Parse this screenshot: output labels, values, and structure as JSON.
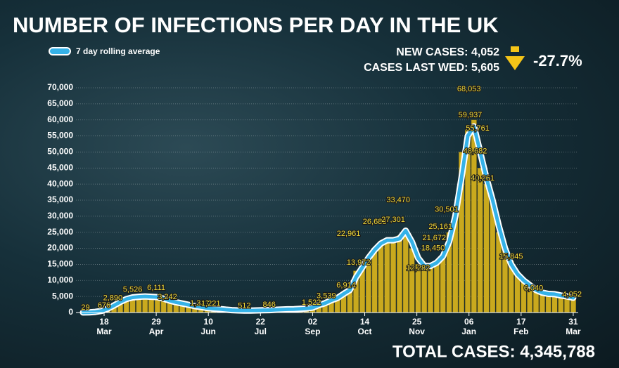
{
  "title": "NUMBER OF INFECTIONS PER DAY IN THE UK",
  "new_cases": "NEW CASES: 4,052",
  "cases_last_wed": "CASES LAST WED: 5,605",
  "change": "-27.7%",
  "total_cases": "TOTAL CASES: 4,345,788",
  "chart_data": {
    "type": "bar_line",
    "legend": "7 day rolling average",
    "xlim": [
      0,
      399
    ],
    "xticks": [
      {
        "value": 17,
        "label": "18 Mar"
      },
      {
        "value": 59,
        "label": "29 Apr"
      },
      {
        "value": 101,
        "label": "10 Jun"
      },
      {
        "value": 143,
        "label": "22 Jul"
      },
      {
        "value": 185,
        "label": "02 Sep"
      },
      {
        "value": 227,
        "label": "14 Oct"
      },
      {
        "value": 269,
        "label": "25 Nov"
      },
      {
        "value": 311,
        "label": "06 Jan"
      },
      {
        "value": 353,
        "label": "17 Feb"
      },
      {
        "value": 395,
        "label": "31 Mar"
      }
    ],
    "ylim": [
      0,
      70000
    ],
    "yticks": [
      0,
      {
        "value": 5000,
        "label": "5,000"
      },
      {
        "value": 10000,
        "label": "10,000"
      },
      {
        "value": 15000,
        "label": "15,000"
      },
      {
        "value": 20000,
        "label": "20,000"
      },
      {
        "value": 25000,
        "label": "25,000"
      },
      {
        "value": 30000,
        "label": "30,000"
      },
      {
        "value": 35000,
        "label": "35,000"
      },
      {
        "value": 40000,
        "label": "40,000"
      },
      {
        "value": 45000,
        "label": "45,000"
      },
      {
        "value": 50000,
        "label": "50,000"
      },
      {
        "value": 55000,
        "label": "55,000"
      },
      {
        "value": 60000,
        "label": "60,000"
      },
      {
        "value": 65000,
        "label": "65,000"
      },
      {
        "value": 70000,
        "label": "70,000"
      }
    ],
    "grid": true,
    "x": [
      0,
      5,
      10,
      15,
      20,
      25,
      30,
      35,
      40,
      45,
      50,
      55,
      60,
      65,
      70,
      75,
      80,
      85,
      90,
      95,
      100,
      105,
      110,
      115,
      120,
      125,
      130,
      135,
      140,
      145,
      150,
      155,
      160,
      165,
      170,
      175,
      180,
      185,
      190,
      195,
      200,
      205,
      210,
      215,
      220,
      225,
      230,
      235,
      240,
      245,
      250,
      255,
      260,
      265,
      270,
      275,
      280,
      285,
      290,
      295,
      300,
      305,
      310,
      315,
      320,
      325,
      330,
      335,
      340,
      345,
      350,
      355,
      360,
      365,
      370,
      375,
      380,
      385,
      390,
      395
    ],
    "bars": {
      "color": "#c9a91e",
      "values": [
        30,
        50,
        300,
        600,
        1500,
        2500,
        3500,
        4500,
        5000,
        5000,
        5200,
        4800,
        5500,
        4500,
        3800,
        3400,
        2900,
        2600,
        2400,
        1800,
        1500,
        1300,
        1200,
        1000,
        800,
        700,
        600,
        550,
        700,
        750,
        800,
        900,
        1000,
        1000,
        1100,
        1200,
        1300,
        1500,
        2500,
        3000,
        4000,
        4500,
        6000,
        7000,
        13000,
        15000,
        17000,
        19000,
        22000,
        23000,
        22000,
        24000,
        25000,
        20000,
        15000,
        13000,
        14000,
        15000,
        18000,
        25000,
        33000,
        50000,
        57000,
        60000,
        45000,
        40000,
        35000,
        25000,
        20000,
        16000,
        12000,
        10000,
        9000,
        7000,
        6000,
        5500,
        5500,
        5000,
        4500,
        4052
      ]
    },
    "series": [
      {
        "name": "7 day rolling average",
        "color": "#35b2e8",
        "values": [
          20,
          40,
          200,
          500,
          1200,
          2200,
          3300,
          4200,
          4700,
          4900,
          5000,
          4900,
          4800,
          4300,
          3700,
          3200,
          2800,
          2400,
          2000,
          1700,
          1400,
          1200,
          1100,
          900,
          750,
          650,
          600,
          600,
          650,
          700,
          750,
          850,
          950,
          1000,
          1050,
          1150,
          1250,
          1500,
          2300,
          2900,
          3800,
          4500,
          5800,
          7000,
          11000,
          14000,
          17000,
          19500,
          21500,
          22500,
          22500,
          23000,
          25500,
          22000,
          17000,
          14500,
          14500,
          15500,
          17500,
          22000,
          30000,
          42000,
          55000,
          58000,
          50000,
          42000,
          35000,
          27000,
          20000,
          15000,
          12000,
          10000,
          8500,
          7000,
          6200,
          5800,
          5700,
          5300,
          5000,
          4600
        ]
      }
    ],
    "annotations": {
      "x": [
        2,
        17,
        24,
        40,
        59,
        68,
        94,
        103,
        130,
        150,
        184,
        196,
        212,
        222,
        214,
        235,
        250,
        254,
        270,
        282,
        283,
        288,
        293,
        311,
        312,
        318,
        316,
        322,
        345,
        363,
        394
      ],
      "values": [
        29,
        676,
        2890,
        5526,
        6111,
        3242,
        1321,
        1221,
        512,
        846,
        1522,
        3539,
        6914,
        13972,
        22961,
        26688,
        27301,
        33470,
        12282,
        18450,
        21672,
        25161,
        30501,
        68053,
        59937,
        55761,
        48682,
        40261,
        15845,
        6040,
        4052
      ],
      "value_labels": [
        "29",
        "676",
        "2,890",
        "5,526",
        "6,111",
        "3,242",
        "1,321",
        "1,221",
        "512",
        "846",
        "1,522",
        "3,539",
        "6,914",
        "13,972",
        "22,961",
        "26,688",
        "27,301",
        "33,470",
        "12,282",
        "18,450",
        "21,672",
        "25,161",
        "30,501",
        "68,053",
        "59,937",
        "55,761",
        "48,682",
        "40,261",
        "15,845",
        "6,040",
        "4,052"
      ]
    }
  }
}
